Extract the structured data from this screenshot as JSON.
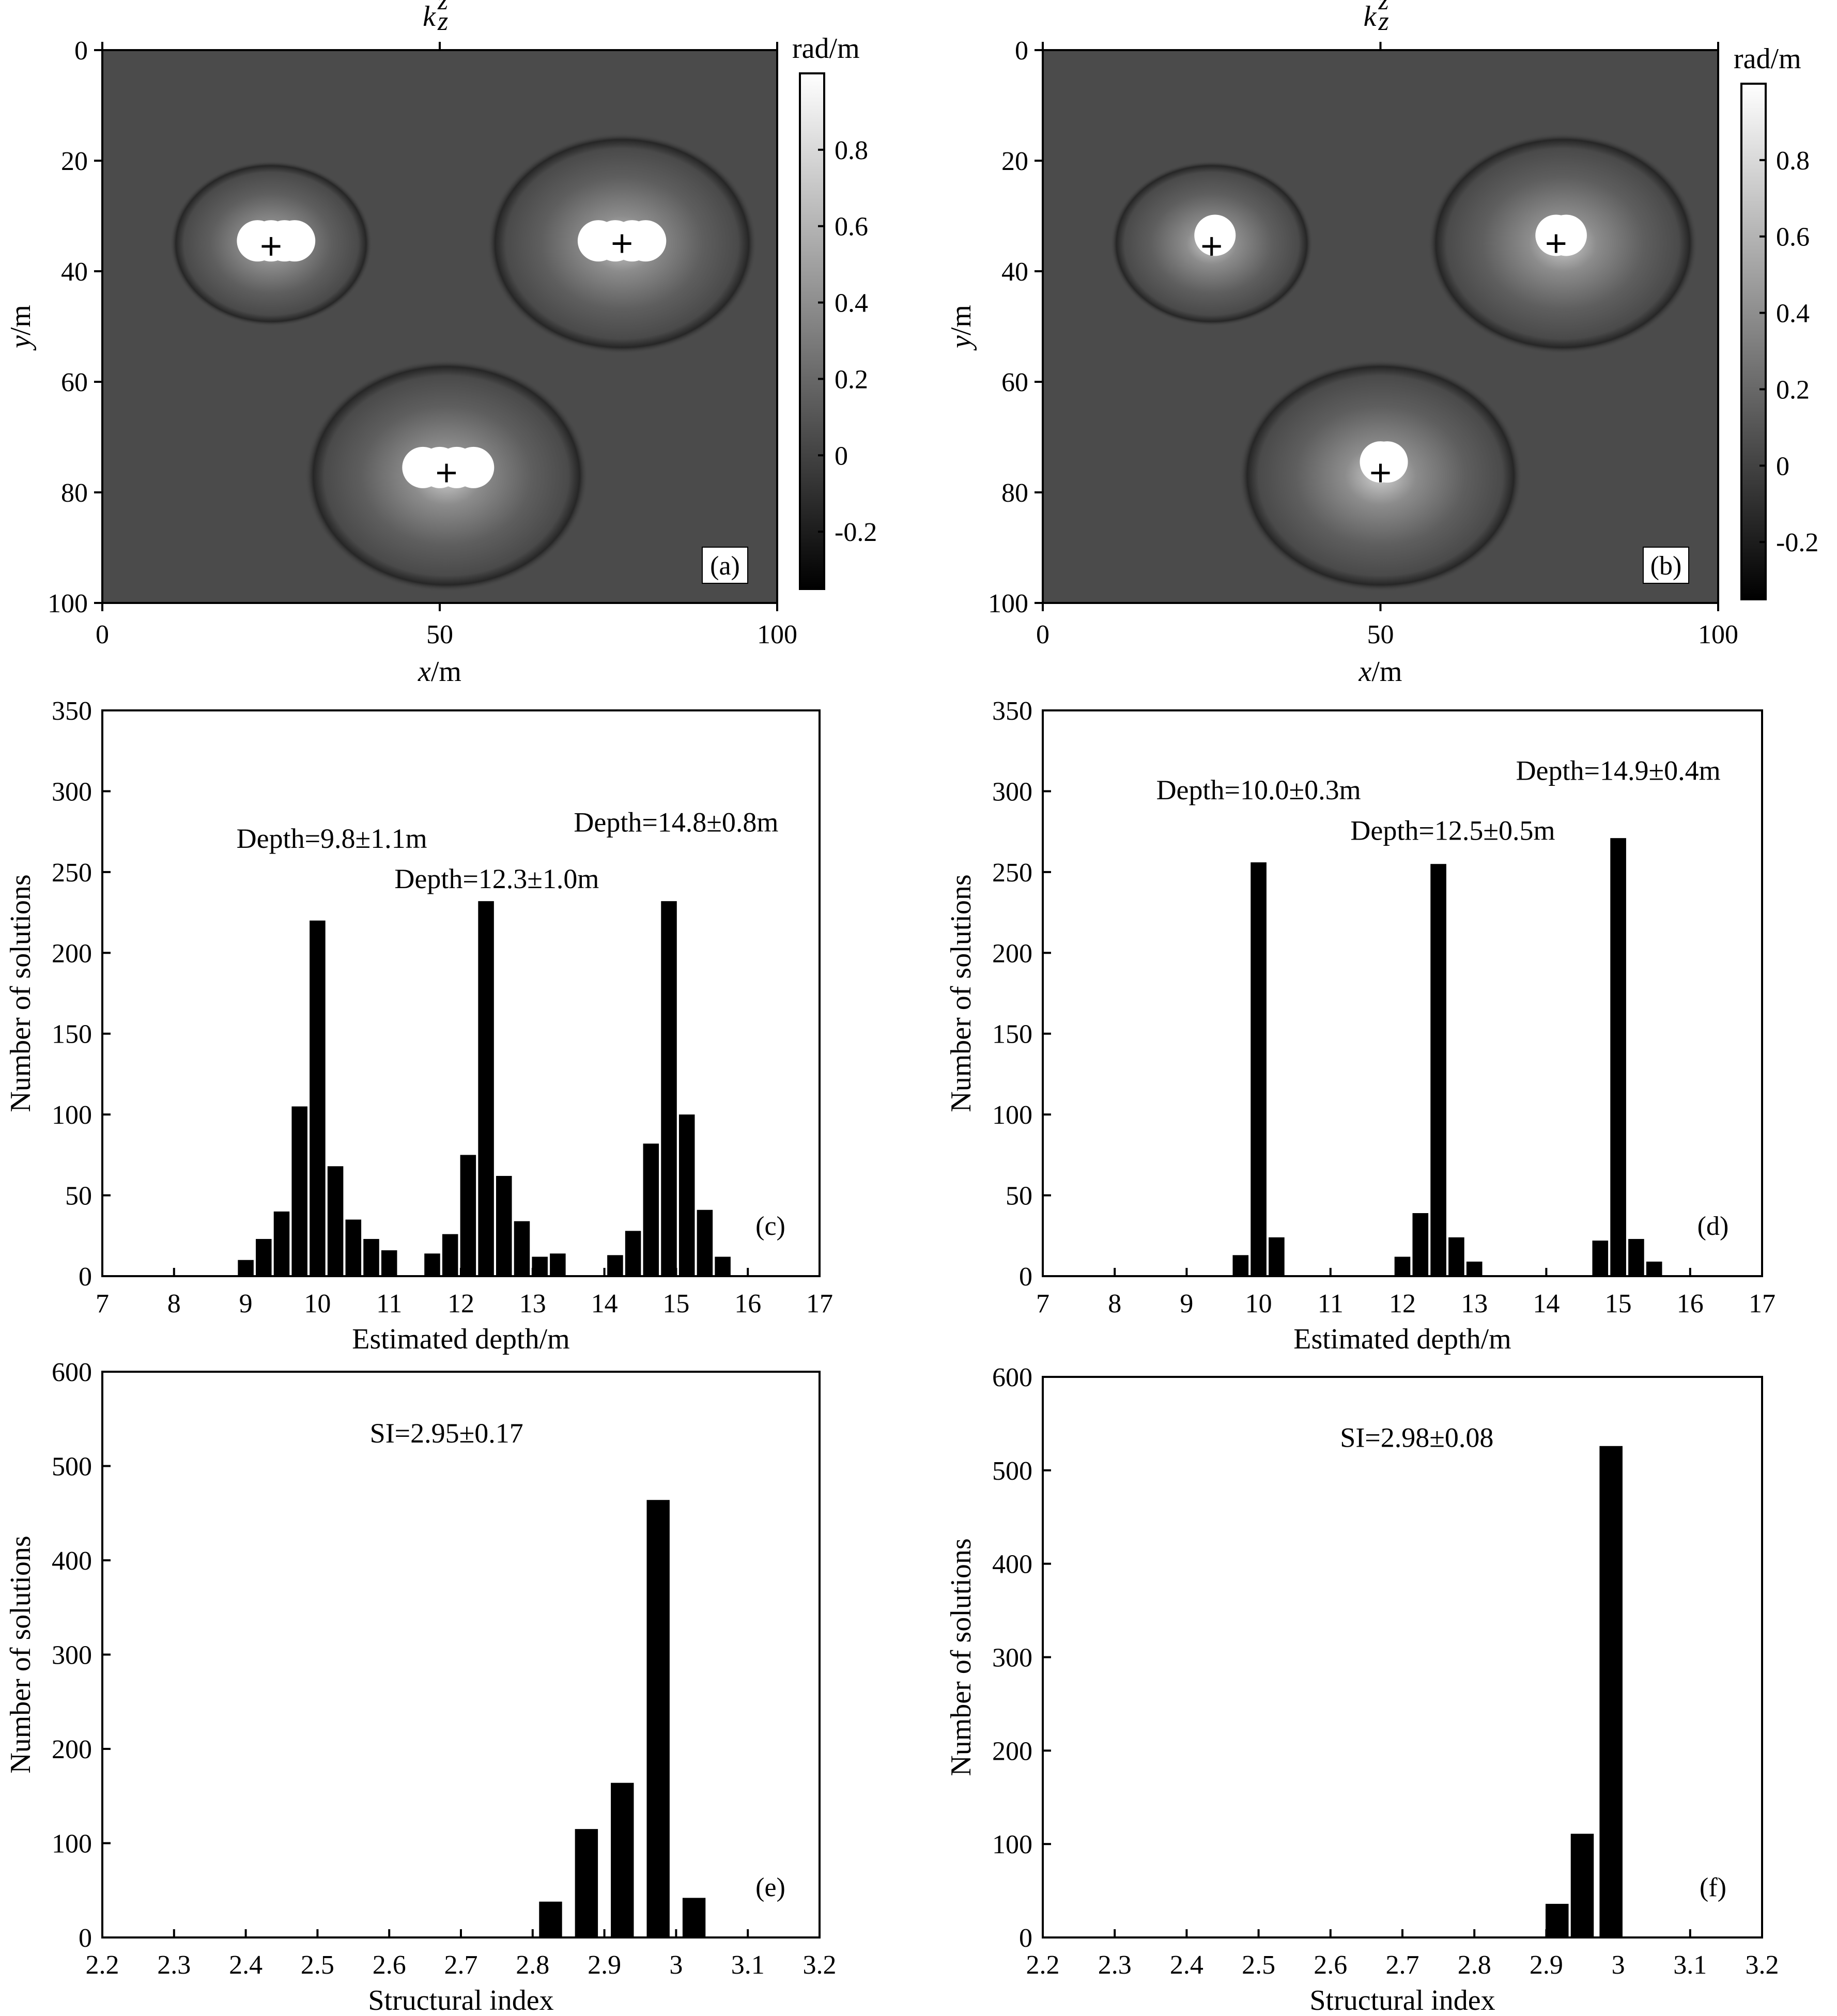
{
  "colors": {
    "background": "#ffffff",
    "foreground": "#000000",
    "map_field": "#4b4b4b",
    "colorbar_low": "#000000",
    "colorbar_high": "#ffffff"
  },
  "chart_data": [
    {
      "id": "a",
      "type": "heatmap",
      "panel_label": "(a)",
      "title_letter": "k",
      "title_sup": "z",
      "title_sub": "z",
      "xlabel_var": "x",
      "xlabel_unit": "/m",
      "ylabel_var": "y",
      "ylabel_unit": "/m",
      "xlim": [
        0,
        100
      ],
      "ylim": [
        100,
        0
      ],
      "xticks": [
        "0",
        "50",
        "100"
      ],
      "yticks": [
        "0",
        "20",
        "40",
        "60",
        "80",
        "100"
      ],
      "colorbar": {
        "unit": "rad/m",
        "range": [
          -0.35,
          1.0
        ],
        "ticks": [
          "0.8",
          "0.6",
          "0.4",
          "0.2",
          "0",
          "-0.2"
        ]
      },
      "bodies": [
        {
          "x": 25,
          "y": 35,
          "r": 15
        },
        {
          "x": 77,
          "y": 35,
          "r": 20
        },
        {
          "x": 51,
          "y": 77,
          "r": 21
        }
      ],
      "markers": [
        {
          "x": 25,
          "y": 35.5
        },
        {
          "x": 77,
          "y": 35
        },
        {
          "x": 51,
          "y": 76.5
        }
      ],
      "solution_clusters": [
        {
          "x": [
            23,
            25,
            27,
            28.5
          ],
          "y": 34.5
        },
        {
          "x": [
            73.5,
            76,
            78.5,
            80.5
          ],
          "y": 34.5
        },
        {
          "x": [
            47.5,
            50,
            52.5,
            55
          ],
          "y": 75.5
        }
      ]
    },
    {
      "id": "b",
      "type": "heatmap",
      "panel_label": "(b)",
      "title_letter": "k",
      "title_sup": "z",
      "title_sub": "z",
      "xlabel_var": "x",
      "xlabel_unit": "/m",
      "ylabel_var": "y",
      "ylabel_unit": "/m",
      "xlim": [
        0,
        100
      ],
      "ylim": [
        100,
        0
      ],
      "xticks": [
        "0",
        "50",
        "100"
      ],
      "yticks": [
        "0",
        "20",
        "40",
        "60",
        "80",
        "100"
      ],
      "colorbar": {
        "unit": "rad/m",
        "range": [
          -0.35,
          1.0
        ],
        "ticks": [
          "0.8",
          "0.6",
          "0.4",
          "0.2",
          "0",
          "-0.2"
        ]
      },
      "bodies": [
        {
          "x": 25,
          "y": 35,
          "r": 15
        },
        {
          "x": 77,
          "y": 35,
          "r": 20
        },
        {
          "x": 50,
          "y": 77,
          "r": 21
        }
      ],
      "markers": [
        {
          "x": 25,
          "y": 35.5
        },
        {
          "x": 76,
          "y": 35
        },
        {
          "x": 50,
          "y": 76.5
        }
      ],
      "solution_clusters": [
        {
          "x": [
            25.5
          ],
          "y": 33.5
        },
        {
          "x": [
            76,
            77.5
          ],
          "y": 33.5
        },
        {
          "x": [
            50,
            51
          ],
          "y": 74.5
        }
      ]
    },
    {
      "id": "c",
      "type": "bar",
      "panel_label": "(c)",
      "xlabel": "Estimated depth/m",
      "ylabel": "Number of solutions",
      "xlim": [
        7,
        17
      ],
      "ylim": [
        0,
        350
      ],
      "xticks": [
        "7",
        "8",
        "9",
        "10",
        "11",
        "12",
        "13",
        "14",
        "15",
        "16",
        "17"
      ],
      "yticks": [
        "0",
        "50",
        "100",
        "150",
        "200",
        "250",
        "300",
        "350"
      ],
      "bar_width": 0.22,
      "x": [
        9.0,
        9.25,
        9.5,
        9.75,
        10.0,
        10.25,
        10.5,
        10.75,
        11.0,
        11.6,
        11.85,
        12.1,
        12.35,
        12.6,
        12.85,
        13.1,
        13.35,
        14.15,
        14.4,
        14.65,
        14.9,
        15.15,
        15.4,
        15.65
      ],
      "values": [
        10,
        23,
        40,
        105,
        220,
        68,
        35,
        23,
        16,
        14,
        26,
        75,
        232,
        62,
        34,
        12,
        14,
        13,
        28,
        82,
        232,
        100,
        41,
        12
      ],
      "annotations": [
        {
          "text": "Depth=9.8±1.1m",
          "x": 10.2,
          "y": 265
        },
        {
          "text": "Depth=12.3±1.0m",
          "x": 12.5,
          "y": 240
        },
        {
          "text": "Depth=14.8±0.8m",
          "x": 15.0,
          "y": 275
        }
      ]
    },
    {
      "id": "d",
      "type": "bar",
      "panel_label": "(d)",
      "xlabel": "Estimated depth/m",
      "ylabel": "Number of solutions",
      "xlim": [
        7,
        17
      ],
      "ylim": [
        0,
        350
      ],
      "xticks": [
        "7",
        "8",
        "9",
        "10",
        "11",
        "12",
        "13",
        "14",
        "15",
        "16",
        "17"
      ],
      "yticks": [
        "0",
        "50",
        "100",
        "150",
        "200",
        "250",
        "300",
        "350"
      ],
      "bar_width": 0.22,
      "x": [
        9.75,
        10.0,
        10.25,
        12.0,
        12.25,
        12.5,
        12.75,
        13.0,
        14.75,
        15.0,
        15.25,
        15.5
      ],
      "values": [
        13,
        256,
        24,
        12,
        39,
        255,
        24,
        9,
        22,
        271,
        23,
        9
      ],
      "annotations": [
        {
          "text": "Depth=10.0±0.3m",
          "x": 10.0,
          "y": 295
        },
        {
          "text": "Depth=12.5±0.5m",
          "x": 12.7,
          "y": 270
        },
        {
          "text": "Depth=14.9±0.4m",
          "x": 15.0,
          "y": 307
        }
      ]
    },
    {
      "id": "e",
      "type": "bar",
      "panel_label": "(e)",
      "xlabel": "Structural index",
      "ylabel": "Number of solutions",
      "xlim": [
        2.2,
        3.2
      ],
      "ylim": [
        0,
        600
      ],
      "xticks": [
        "2.2",
        "2.3",
        "2.4",
        "2.5",
        "2.6",
        "2.7",
        "2.8",
        "2.9",
        "3",
        "3.1",
        "3.2"
      ],
      "yticks": [
        "0",
        "100",
        "200",
        "300",
        "400",
        "500",
        "600"
      ],
      "bar_width": 0.032,
      "x": [
        2.8,
        2.825,
        2.85,
        2.875,
        2.9,
        2.925,
        2.95,
        2.975,
        3.0,
        3.025,
        3.05
      ],
      "values": [
        0,
        38,
        0,
        115,
        0,
        164,
        0,
        464,
        0,
        42,
        0
      ],
      "values_note": "",
      "annotations": [
        {
          "text": "SI=2.95±0.17",
          "x": 2.68,
          "y": 525
        }
      ]
    },
    {
      "id": "f",
      "type": "bar",
      "panel_label": "(f)",
      "xlabel": "Structural index",
      "ylabel": "Number of solutions",
      "xlim": [
        2.2,
        3.2
      ],
      "ylim": [
        0,
        600
      ],
      "xticks": [
        "2.2",
        "2.3",
        "2.4",
        "2.5",
        "2.6",
        "2.7",
        "2.8",
        "2.9",
        "3",
        "3.1",
        "3.2"
      ],
      "yticks": [
        "0",
        "100",
        "200",
        "300",
        "400",
        "500",
        "600"
      ],
      "bar_width": 0.032,
      "x": [
        2.78,
        2.915,
        2.95,
        2.99
      ],
      "values": [
        1,
        36,
        111,
        526
      ],
      "annotations": [
        {
          "text": "SI=2.98±0.08",
          "x": 2.72,
          "y": 525
        }
      ]
    }
  ]
}
